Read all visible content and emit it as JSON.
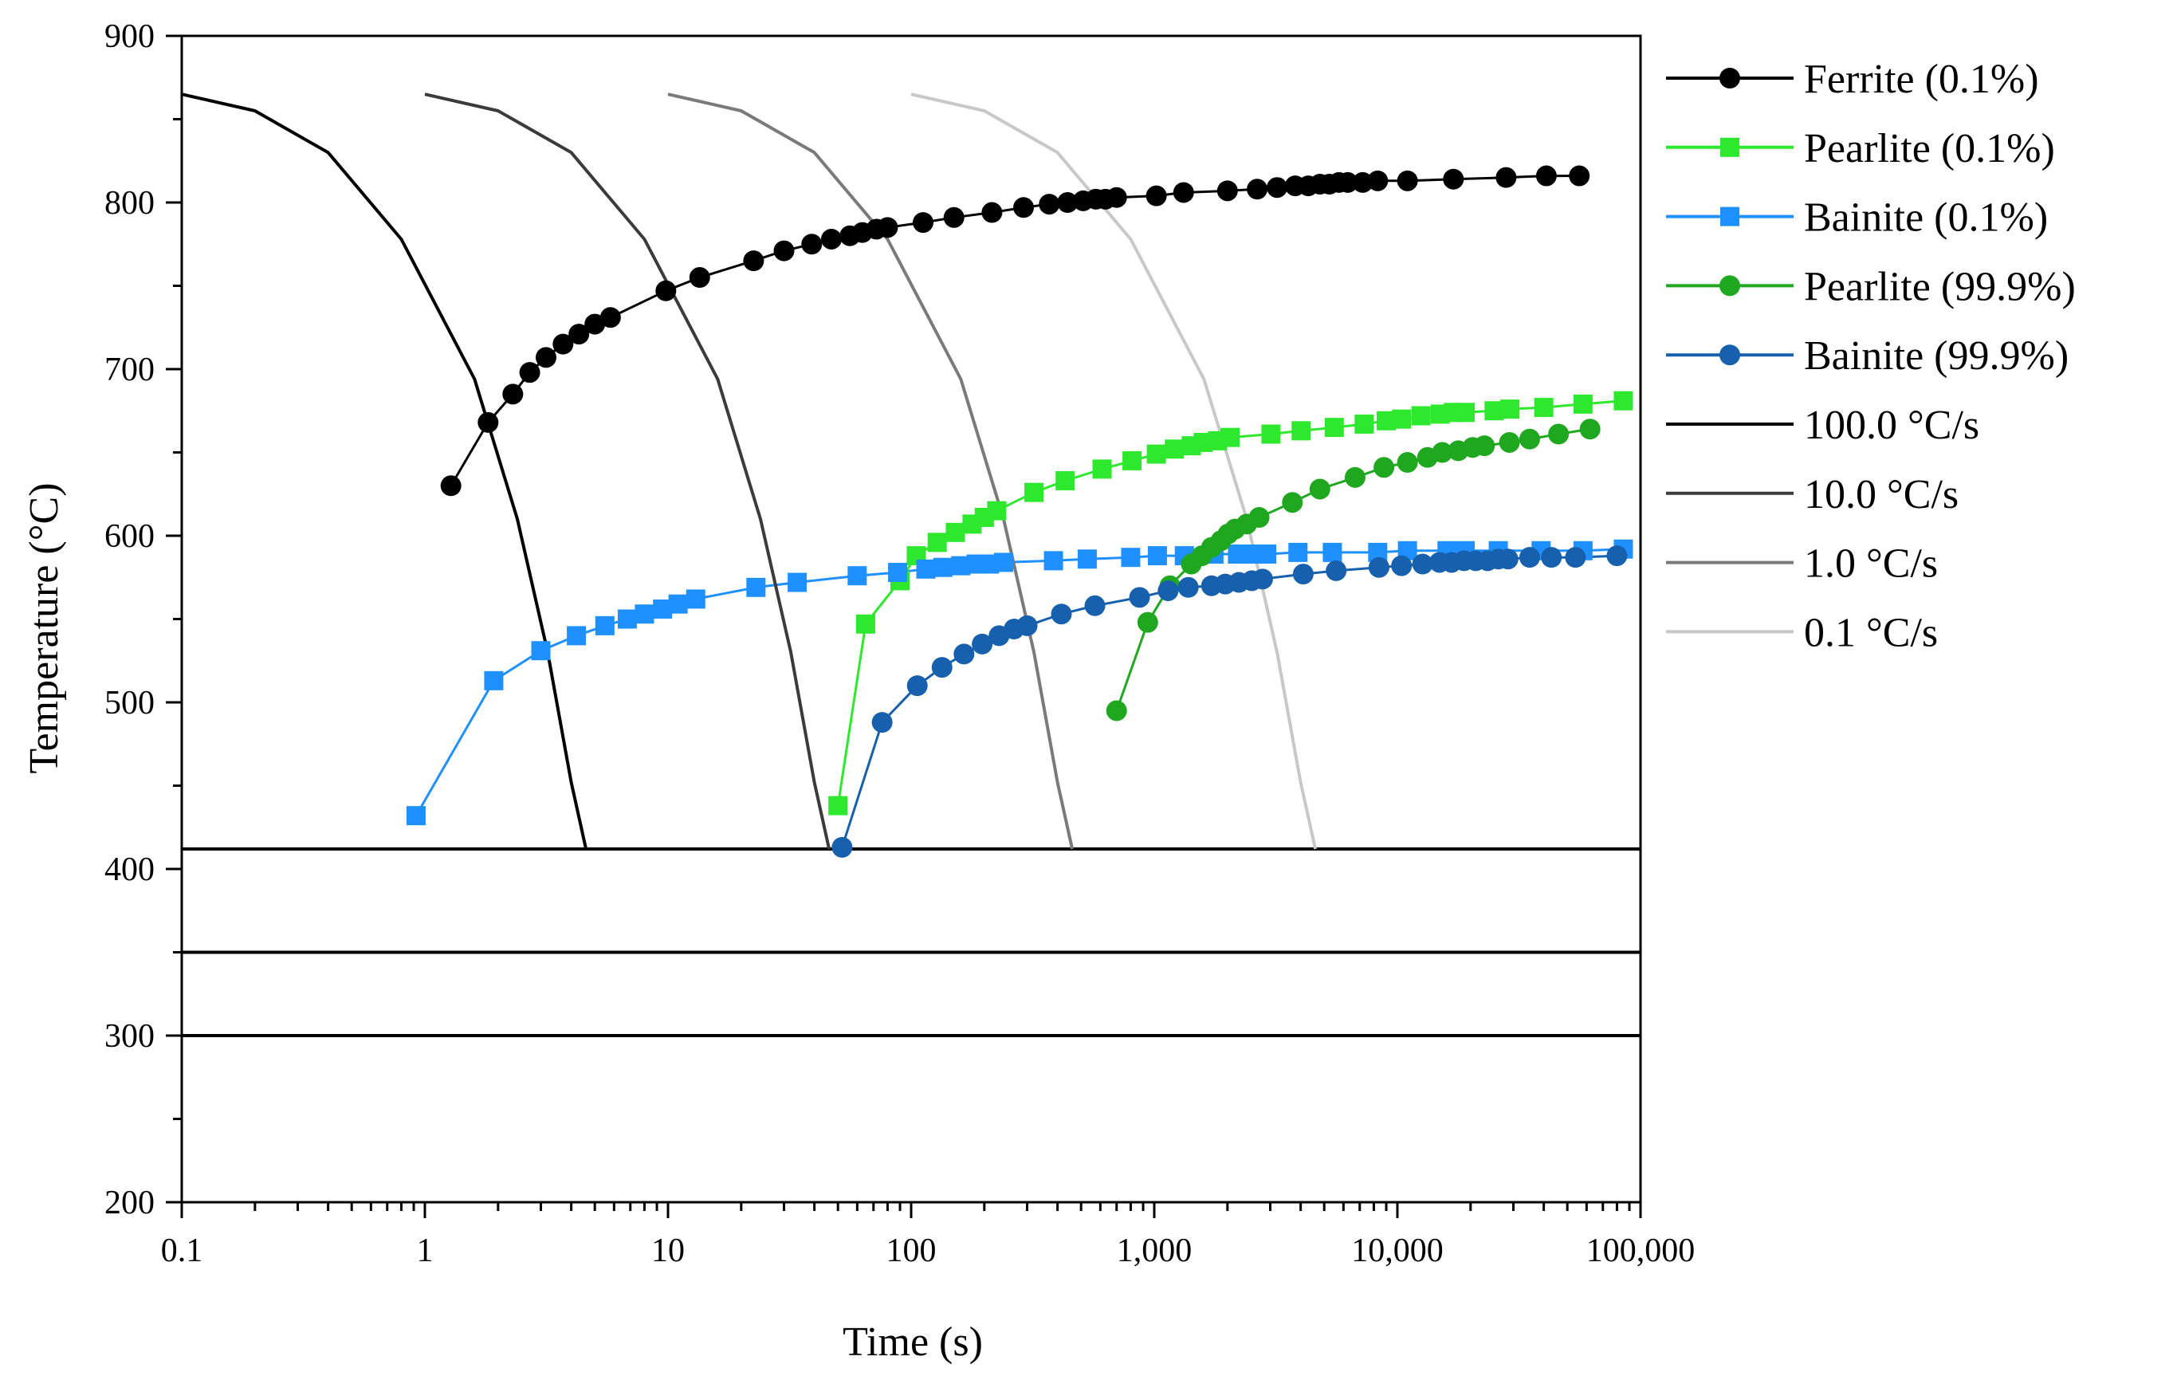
{
  "chart_data": {
    "type": "line",
    "xlabel": "Time (s)",
    "ylabel": "Temperature (°C)",
    "xscale": "log",
    "xlim": [
      0.1,
      100000
    ],
    "ylim": [
      200,
      900
    ],
    "x_ticks": [
      {
        "value": 0.1,
        "label": "0.1"
      },
      {
        "value": 1,
        "label": "1"
      },
      {
        "value": 10,
        "label": "10"
      },
      {
        "value": 100,
        "label": "100"
      },
      {
        "value": 1000,
        "label": "1,000"
      },
      {
        "value": 10000,
        "label": "10,000"
      },
      {
        "value": 100000,
        "label": "100,000"
      }
    ],
    "y_ticks": [
      {
        "value": 200,
        "label": "200"
      },
      {
        "value": 300,
        "label": "300"
      },
      {
        "value": 400,
        "label": "400"
      },
      {
        "value": 500,
        "label": "500"
      },
      {
        "value": 600,
        "label": "600"
      },
      {
        "value": 700,
        "label": "700"
      },
      {
        "value": 800,
        "label": "800"
      },
      {
        "value": 900,
        "label": "900"
      }
    ],
    "grid": false,
    "legend_position": "outside-right",
    "series": [
      {
        "name": "Ferrite (0.1%)",
        "kind": "marker-line",
        "marker": "circle",
        "color": "#000000",
        "x": [
          1.28,
          1.82,
          2.3,
          2.7,
          3.15,
          3.7,
          4.3,
          5.0,
          5.8,
          9.8,
          13.5,
          22.5,
          30,
          39,
          47,
          56,
          63,
          72,
          80,
          112,
          150,
          215,
          290,
          370,
          440,
          510,
          575,
          630,
          700,
          1020,
          1320,
          2000,
          2650,
          3200,
          3800,
          4300,
          4800,
          5250,
          5750,
          6250,
          7200,
          8300,
          11000,
          17000,
          28000,
          41000,
          56000
        ],
        "y": [
          630,
          668,
          685,
          698,
          707,
          715,
          721,
          727,
          731,
          747,
          755,
          765,
          771,
          775,
          778,
          780,
          782,
          784,
          785,
          788,
          791,
          794,
          797,
          799,
          800,
          801,
          802,
          802,
          803,
          804,
          806,
          807,
          808,
          809,
          810,
          810,
          811,
          811,
          812,
          812,
          812,
          813,
          813,
          814,
          815,
          816,
          816
        ]
      },
      {
        "name": "Pearlite (0.1%)",
        "kind": "marker-line",
        "marker": "square",
        "color": "#2ee82e",
        "x": [
          50,
          65,
          90,
          105,
          128,
          152,
          178,
          200,
          225,
          320,
          430,
          610,
          810,
          1020,
          1210,
          1420,
          1590,
          1820,
          2050,
          3020,
          4020,
          5500,
          7300,
          9000,
          10400,
          12500,
          15000,
          17000,
          19000,
          25000,
          29000,
          40000,
          58000,
          85000
        ],
        "y": [
          438,
          547,
          573,
          588,
          596,
          602,
          607,
          611,
          615,
          626,
          633,
          640,
          645,
          649,
          652,
          654,
          656,
          657,
          659,
          661,
          663,
          665,
          667,
          669,
          670,
          672,
          673,
          674,
          674,
          675,
          676,
          677,
          679,
          681
        ]
      },
      {
        "name": "Bainite (0.1%)",
        "kind": "marker-line",
        "marker": "square",
        "color": "#1e90ff",
        "x": [
          0.92,
          1.92,
          3.0,
          4.2,
          5.5,
          6.8,
          8.0,
          9.5,
          11,
          13,
          23,
          34,
          60,
          88,
          115,
          135,
          160,
          185,
          210,
          240,
          385,
          530,
          800,
          1030,
          1330,
          1760,
          2200,
          2500,
          2900,
          3900,
          5400,
          8300,
          11000,
          16000,
          19000,
          26000,
          39000,
          58000,
          85000
        ],
        "y": [
          432,
          513,
          531,
          540,
          546,
          550,
          553,
          556,
          559,
          562,
          569,
          572,
          576,
          578,
          580,
          581,
          582,
          583,
          583,
          584,
          585,
          586,
          587,
          588,
          588,
          589,
          589,
          589,
          589,
          590,
          590,
          590,
          591,
          591,
          591,
          591,
          591,
          591,
          592
        ]
      },
      {
        "name": "Pearlite (99.9%)",
        "kind": "marker-line",
        "marker": "circle",
        "color": "#1fa81f",
        "x": [
          700,
          940,
          1160,
          1420,
          1570,
          1720,
          1880,
          2010,
          2150,
          2400,
          2700,
          3700,
          4800,
          6700,
          8800,
          11000,
          13300,
          15300,
          17800,
          20400,
          22800,
          28900,
          35000,
          46000,
          62000
        ],
        "y": [
          495,
          548,
          570,
          583,
          588,
          593,
          597,
          601,
          604,
          607,
          611,
          620,
          628,
          635,
          641,
          644,
          647,
          650,
          651,
          653,
          654,
          656,
          658,
          661,
          664
        ]
      },
      {
        "name": "Bainite (99.9%)",
        "kind": "marker-line",
        "marker": "circle",
        "color": "#1760ad",
        "x": [
          52,
          76,
          106,
          134,
          165,
          196,
          230,
          265,
          300,
          415,
          570,
          870,
          1140,
          1380,
          1720,
          1960,
          2230,
          2520,
          2790,
          4100,
          5600,
          8400,
          10400,
          12700,
          14900,
          16700,
          18800,
          21000,
          23500,
          26000,
          28500,
          35000,
          43000,
          54000,
          80000
        ],
        "y": [
          413,
          488,
          510,
          521,
          529,
          535,
          540,
          544,
          546,
          553,
          558,
          563,
          567,
          569,
          570,
          571,
          572,
          573,
          574,
          577,
          579,
          581,
          582,
          583,
          584,
          584,
          585,
          585,
          585,
          586,
          586,
          587,
          587,
          587,
          588
        ]
      },
      {
        "name": "100.0 °C/s",
        "kind": "cooling",
        "color": "#000000",
        "x": [
          0.1,
          0.2,
          0.4,
          0.8,
          1.6,
          2.4,
          3.2,
          4.0,
          4.6
        ],
        "y": [
          865,
          855,
          830,
          778,
          694,
          610,
          530,
          452,
          412
        ]
      },
      {
        "name": "10.0 °C/s",
        "kind": "cooling",
        "color": "#3b3b3b",
        "x": [
          1,
          2,
          4,
          8,
          16,
          24,
          32,
          40,
          46
        ],
        "y": [
          865,
          855,
          830,
          778,
          694,
          610,
          530,
          452,
          412
        ]
      },
      {
        "name": "1.0 °C/s",
        "kind": "cooling",
        "color": "#7a7a7a",
        "x": [
          10,
          20,
          40,
          80,
          160,
          240,
          320,
          400,
          460
        ],
        "y": [
          865,
          855,
          830,
          778,
          694,
          610,
          530,
          452,
          412
        ]
      },
      {
        "name": "0.1 °C/s",
        "kind": "cooling",
        "color": "#c8c8c8",
        "x": [
          100,
          200,
          400,
          800,
          1600,
          2400,
          3200,
          4000,
          4600
        ],
        "y": [
          865,
          855,
          830,
          778,
          694,
          610,
          530,
          452,
          412
        ]
      }
    ],
    "hlines": [
      412,
      350,
      300
    ]
  }
}
